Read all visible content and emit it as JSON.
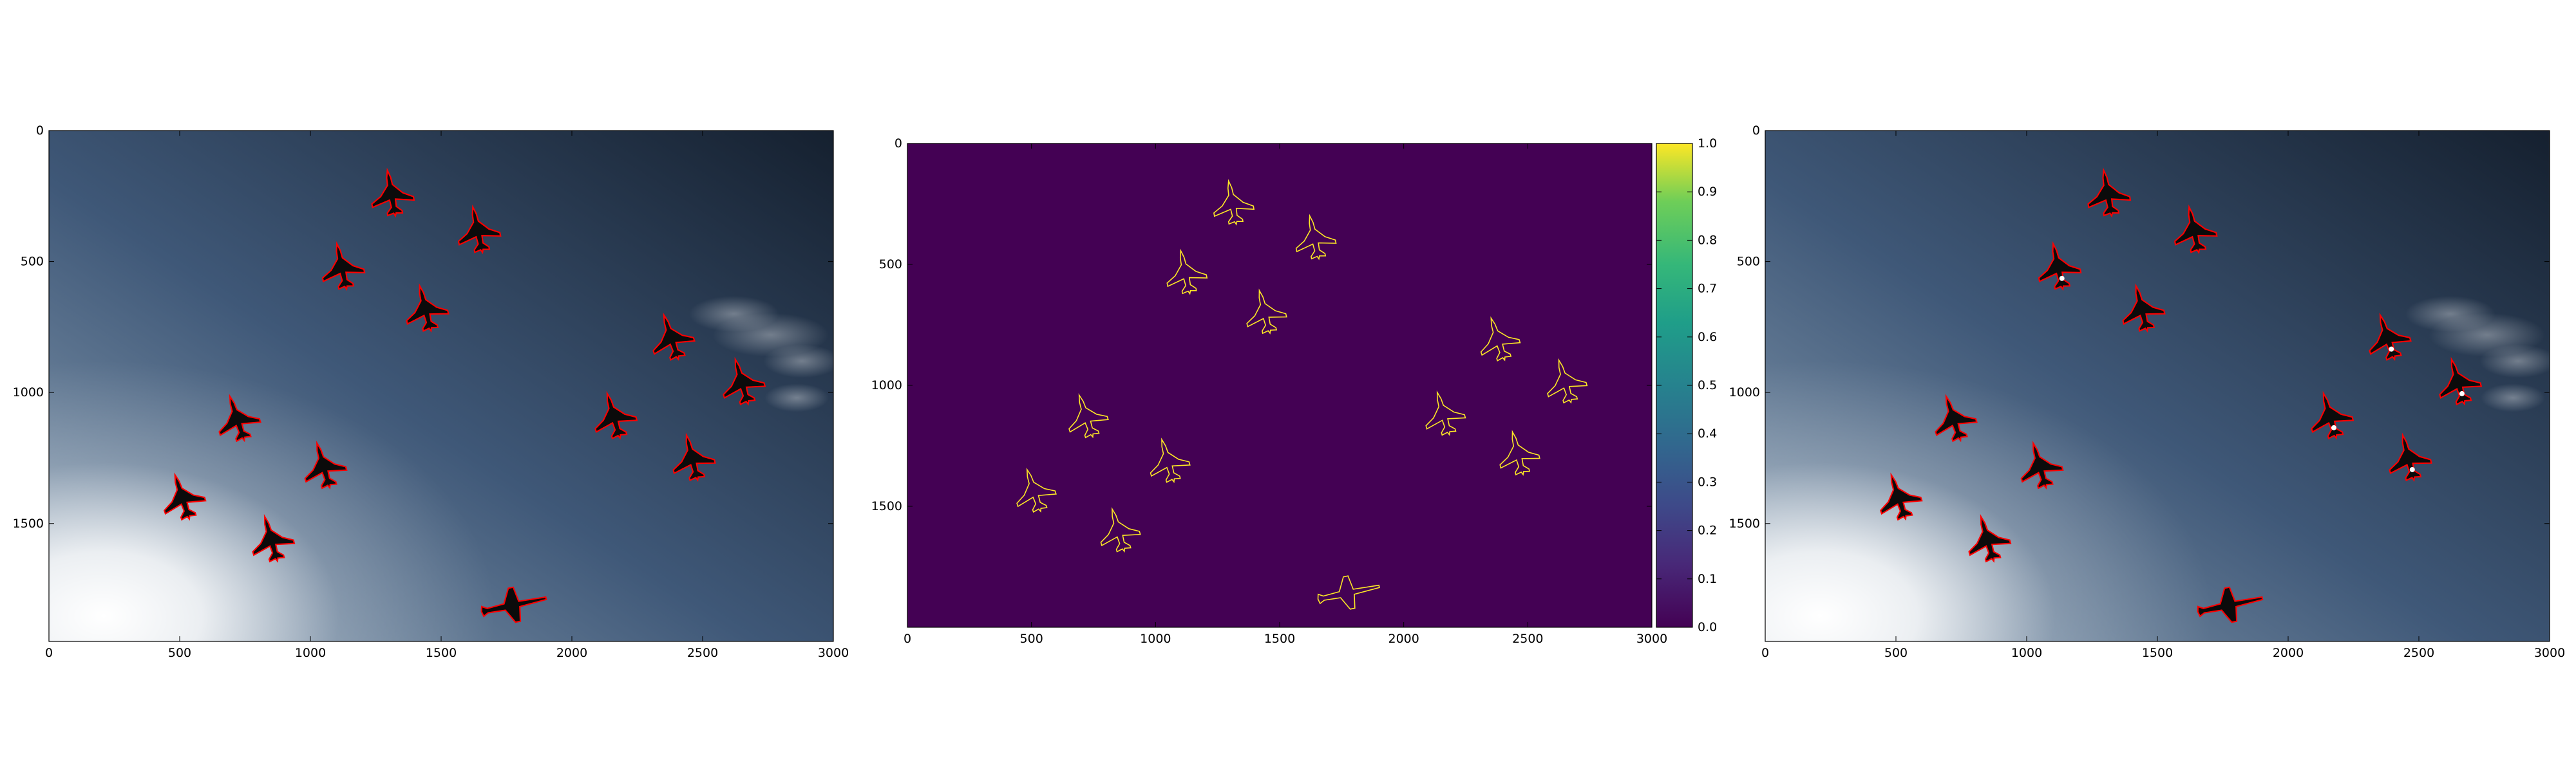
{
  "chart_data": [
    {
      "type": "image",
      "panel": "left",
      "xlim": [
        0,
        3000
      ],
      "ylim": [
        1950,
        0
      ],
      "x_ticks": [
        0,
        500,
        1000,
        1500,
        2000,
        2500,
        3000
      ],
      "y_ticks": [
        0,
        500,
        1000,
        1500
      ],
      "contour_color": "#ff0000",
      "planes": [
        {
          "x": 1310,
          "y": 240,
          "rot": -10
        },
        {
          "x": 1640,
          "y": 380,
          "rot": -12
        },
        {
          "x": 1120,
          "y": 520,
          "rot": -12
        },
        {
          "x": 1440,
          "y": 680,
          "rot": -14
        },
        {
          "x": 2380,
          "y": 790,
          "rot": -18
        },
        {
          "x": 2650,
          "y": 960,
          "rot": -16
        },
        {
          "x": 2160,
          "y": 1090,
          "rot": -16
        },
        {
          "x": 720,
          "y": 1100,
          "rot": -18
        },
        {
          "x": 1050,
          "y": 1280,
          "rot": -16
        },
        {
          "x": 2460,
          "y": 1250,
          "rot": -14
        },
        {
          "x": 510,
          "y": 1400,
          "rot": -18
        },
        {
          "x": 850,
          "y": 1560,
          "rot": -16
        }
      ],
      "bomber": {
        "x": 1780,
        "y": 1810,
        "rot": -12
      }
    },
    {
      "type": "heatmap",
      "panel": "middle",
      "xlim": [
        0,
        3000
      ],
      "ylim": [
        2000,
        0
      ],
      "x_ticks": [
        0,
        500,
        1000,
        1500,
        2000,
        2500,
        3000
      ],
      "y_ticks": [
        0,
        500,
        1000,
        1500
      ],
      "background_value": 0.0,
      "contour_value": 1.0,
      "colorbar": {
        "range": [
          0.0,
          1.0
        ],
        "ticks": [
          "0.0",
          "0.1",
          "0.2",
          "0.3",
          "0.4",
          "0.5",
          "0.6",
          "0.7",
          "0.8",
          "0.9",
          "1.0"
        ],
        "colormap": "viridis"
      }
    },
    {
      "type": "image",
      "panel": "right",
      "xlim": [
        0,
        3000
      ],
      "ylim": [
        1950,
        0
      ],
      "x_ticks": [
        0,
        500,
        1000,
        1500,
        2000,
        2500,
        3000
      ],
      "y_ticks": [
        0,
        500,
        1000,
        1500
      ],
      "contour_color": "#ff0000"
    }
  ],
  "colors": {
    "sky_dark": "#15202f",
    "sky_mid": "#3f5878",
    "sky_light": "#8ea3b6",
    "sun": "#ffffff",
    "viridis_bg": "#440154",
    "viridis_contour": "#fde725"
  }
}
